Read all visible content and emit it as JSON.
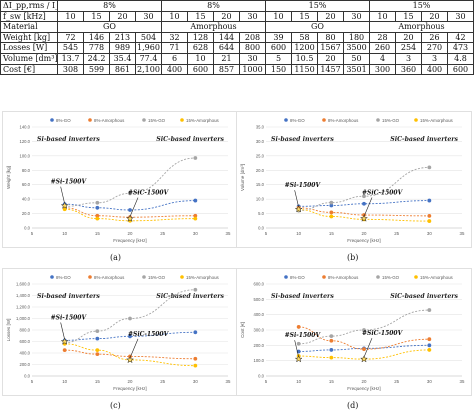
{
  "table": {
    "header1": {
      "label": "ΔI_pp,rms / I_grid [%]",
      "groups": [
        "8%",
        "8%",
        "15%",
        "15%"
      ]
    },
    "header2": {
      "label": "f_sw [kHz]",
      "values": [
        "10",
        "15",
        "20",
        "30",
        "10",
        "15",
        "20",
        "30",
        "10",
        "15",
        "20",
        "30",
        "10",
        "15",
        "20",
        "30"
      ]
    },
    "header3": {
      "label": "Material",
      "groups": [
        "GO",
        "Amorphous",
        "GO",
        "Amorphous"
      ]
    },
    "rows": [
      {
        "label": "Weight [kg]",
        "values": [
          "72",
          "146",
          "213",
          "504",
          "32",
          "128",
          "144",
          "208",
          "39",
          "58",
          "80",
          "180",
          "28",
          "20",
          "26",
          "42"
        ]
      },
      {
        "label": "Losses [W]",
        "values": [
          "545",
          "778",
          "989",
          "1,960",
          "71",
          "628",
          "644",
          "800",
          "600",
          "1200",
          "1567",
          "3500",
          "260",
          "254",
          "270",
          "473"
        ]
      },
      {
        "label": "Volume [dm³]",
        "values": [
          "13.7",
          "24.2",
          "35.4",
          "77.4",
          "6",
          "10",
          "21",
          "30",
          "5",
          "10.5",
          "20",
          "50",
          "4",
          "3",
          "3",
          "4.8"
        ]
      },
      {
        "label": "Cost [€]",
        "values": [
          "308",
          "599",
          "861",
          "2,100",
          "400",
          "600",
          "857",
          "1000",
          "150",
          "1150",
          "1457",
          "3501",
          "300",
          "360",
          "400",
          "600"
        ]
      }
    ]
  },
  "legend": [
    "8%-GO",
    "8%-Amorphous",
    "15%-GO",
    "15%-Amorphous"
  ],
  "region_labels": {
    "left": "Si-based inverters",
    "right": "SiC-based inverters"
  },
  "point_labels": {
    "si": "#Si-1500V",
    "sic": "#SiC-1500V"
  },
  "x_label": "Frequency [kHz]",
  "x_ticks": [
    "5",
    "10",
    "15",
    "20",
    "25",
    "30",
    "35"
  ],
  "colors": {
    "go8": "#4472c4",
    "am8": "#ed7d31",
    "go15": "#a5a5a5",
    "am15": "#ffc000"
  },
  "chart_data": [
    {
      "type": "scatter",
      "caption": "(a)",
      "ylabel": "Weight [kg]",
      "yticks": [
        "0.0",
        "20.0",
        "40.0",
        "60.0",
        "80.0",
        "100.0",
        "120.0",
        "140.0"
      ],
      "xlim": [
        5,
        35
      ],
      "ylim": [
        0,
        140
      ],
      "x": [
        10,
        15,
        20,
        30
      ],
      "series": [
        {
          "name": "8%-GO",
          "values": [
            33,
            28,
            25,
            38
          ]
        },
        {
          "name": "8%-Amorphous",
          "values": [
            28,
            17,
            15,
            17
          ]
        },
        {
          "name": "15%-GO",
          "values": [
            30,
            35,
            48,
            97
          ]
        },
        {
          "name": "15%-Amorphous",
          "values": [
            26,
            13,
            10,
            13
          ]
        }
      ],
      "markers": {
        "si": {
          "x": 10,
          "y": 31
        },
        "sic": {
          "x": 20,
          "y": 13
        }
      }
    },
    {
      "type": "scatter",
      "caption": "(b)",
      "ylabel": "Volume [dm³]",
      "yticks": [
        "0.0",
        "5.0",
        "10.0",
        "15.0",
        "20.0",
        "25.0",
        "30.0",
        "35.0"
      ],
      "xlim": [
        5,
        35
      ],
      "ylim": [
        0,
        35
      ],
      "x": [
        10,
        15,
        20,
        30
      ],
      "series": [
        {
          "name": "8%-GO",
          "values": [
            7.5,
            7.8,
            8.4,
            9.5
          ]
        },
        {
          "name": "8%-Amorphous",
          "values": [
            7,
            5.4,
            4.5,
            4.2
          ]
        },
        {
          "name": "15%-GO",
          "values": [
            6,
            8.8,
            11,
            21
          ]
        },
        {
          "name": "15%-Amorphous",
          "values": [
            6.4,
            4,
            3,
            2.4
          ]
        }
      ],
      "markers": {
        "si": {
          "x": 10,
          "y": 6.5
        },
        "sic": {
          "x": 20,
          "y": 3.3
        }
      }
    },
    {
      "type": "scatter",
      "caption": "(c)",
      "ylabel": "Losses [W]",
      "yticks": [
        "0.0",
        "200.0",
        "400.0",
        "600.0",
        "800.0",
        "1,000.0",
        "1,200.0",
        "1,400.0",
        "1,600.0"
      ],
      "xlim": [
        5,
        35
      ],
      "ylim": [
        0,
        1600
      ],
      "x": [
        10,
        15,
        20,
        30
      ],
      "series": [
        {
          "name": "8%-GO",
          "values": [
            620,
            650,
            690,
            760
          ]
        },
        {
          "name": "8%-Amorphous",
          "values": [
            450,
            380,
            340,
            300
          ]
        },
        {
          "name": "15%-GO",
          "values": [
            580,
            780,
            1000,
            1500
          ]
        },
        {
          "name": "15%-Amorphous",
          "values": [
            560,
            450,
            280,
            180
          ]
        }
      ],
      "markers": {
        "si": {
          "x": 10,
          "y": 600
        },
        "sic": {
          "x": 20,
          "y": 280
        }
      }
    },
    {
      "type": "scatter",
      "caption": "(d)",
      "ylabel": "Cost [€]",
      "yticks": [
        "0.0",
        "100.0",
        "200.0",
        "300.0",
        "400.0",
        "500.0",
        "600.0"
      ],
      "xlim": [
        5,
        35
      ],
      "ylim": [
        0,
        600
      ],
      "x": [
        10,
        15,
        20,
        30
      ],
      "series": [
        {
          "name": "8%-GO",
          "values": [
            160,
            170,
            180,
            200
          ]
        },
        {
          "name": "8%-Amorphous",
          "values": [
            320,
            230,
            175,
            240
          ]
        },
        {
          "name": "15%-GO",
          "values": [
            210,
            260,
            300,
            430
          ]
        },
        {
          "name": "15%-Amorphous",
          "values": [
            130,
            120,
            110,
            170
          ]
        }
      ],
      "markers": {
        "si": {
          "x": 10,
          "y": 110
        },
        "sic": {
          "x": 20,
          "y": 110
        }
      }
    }
  ]
}
